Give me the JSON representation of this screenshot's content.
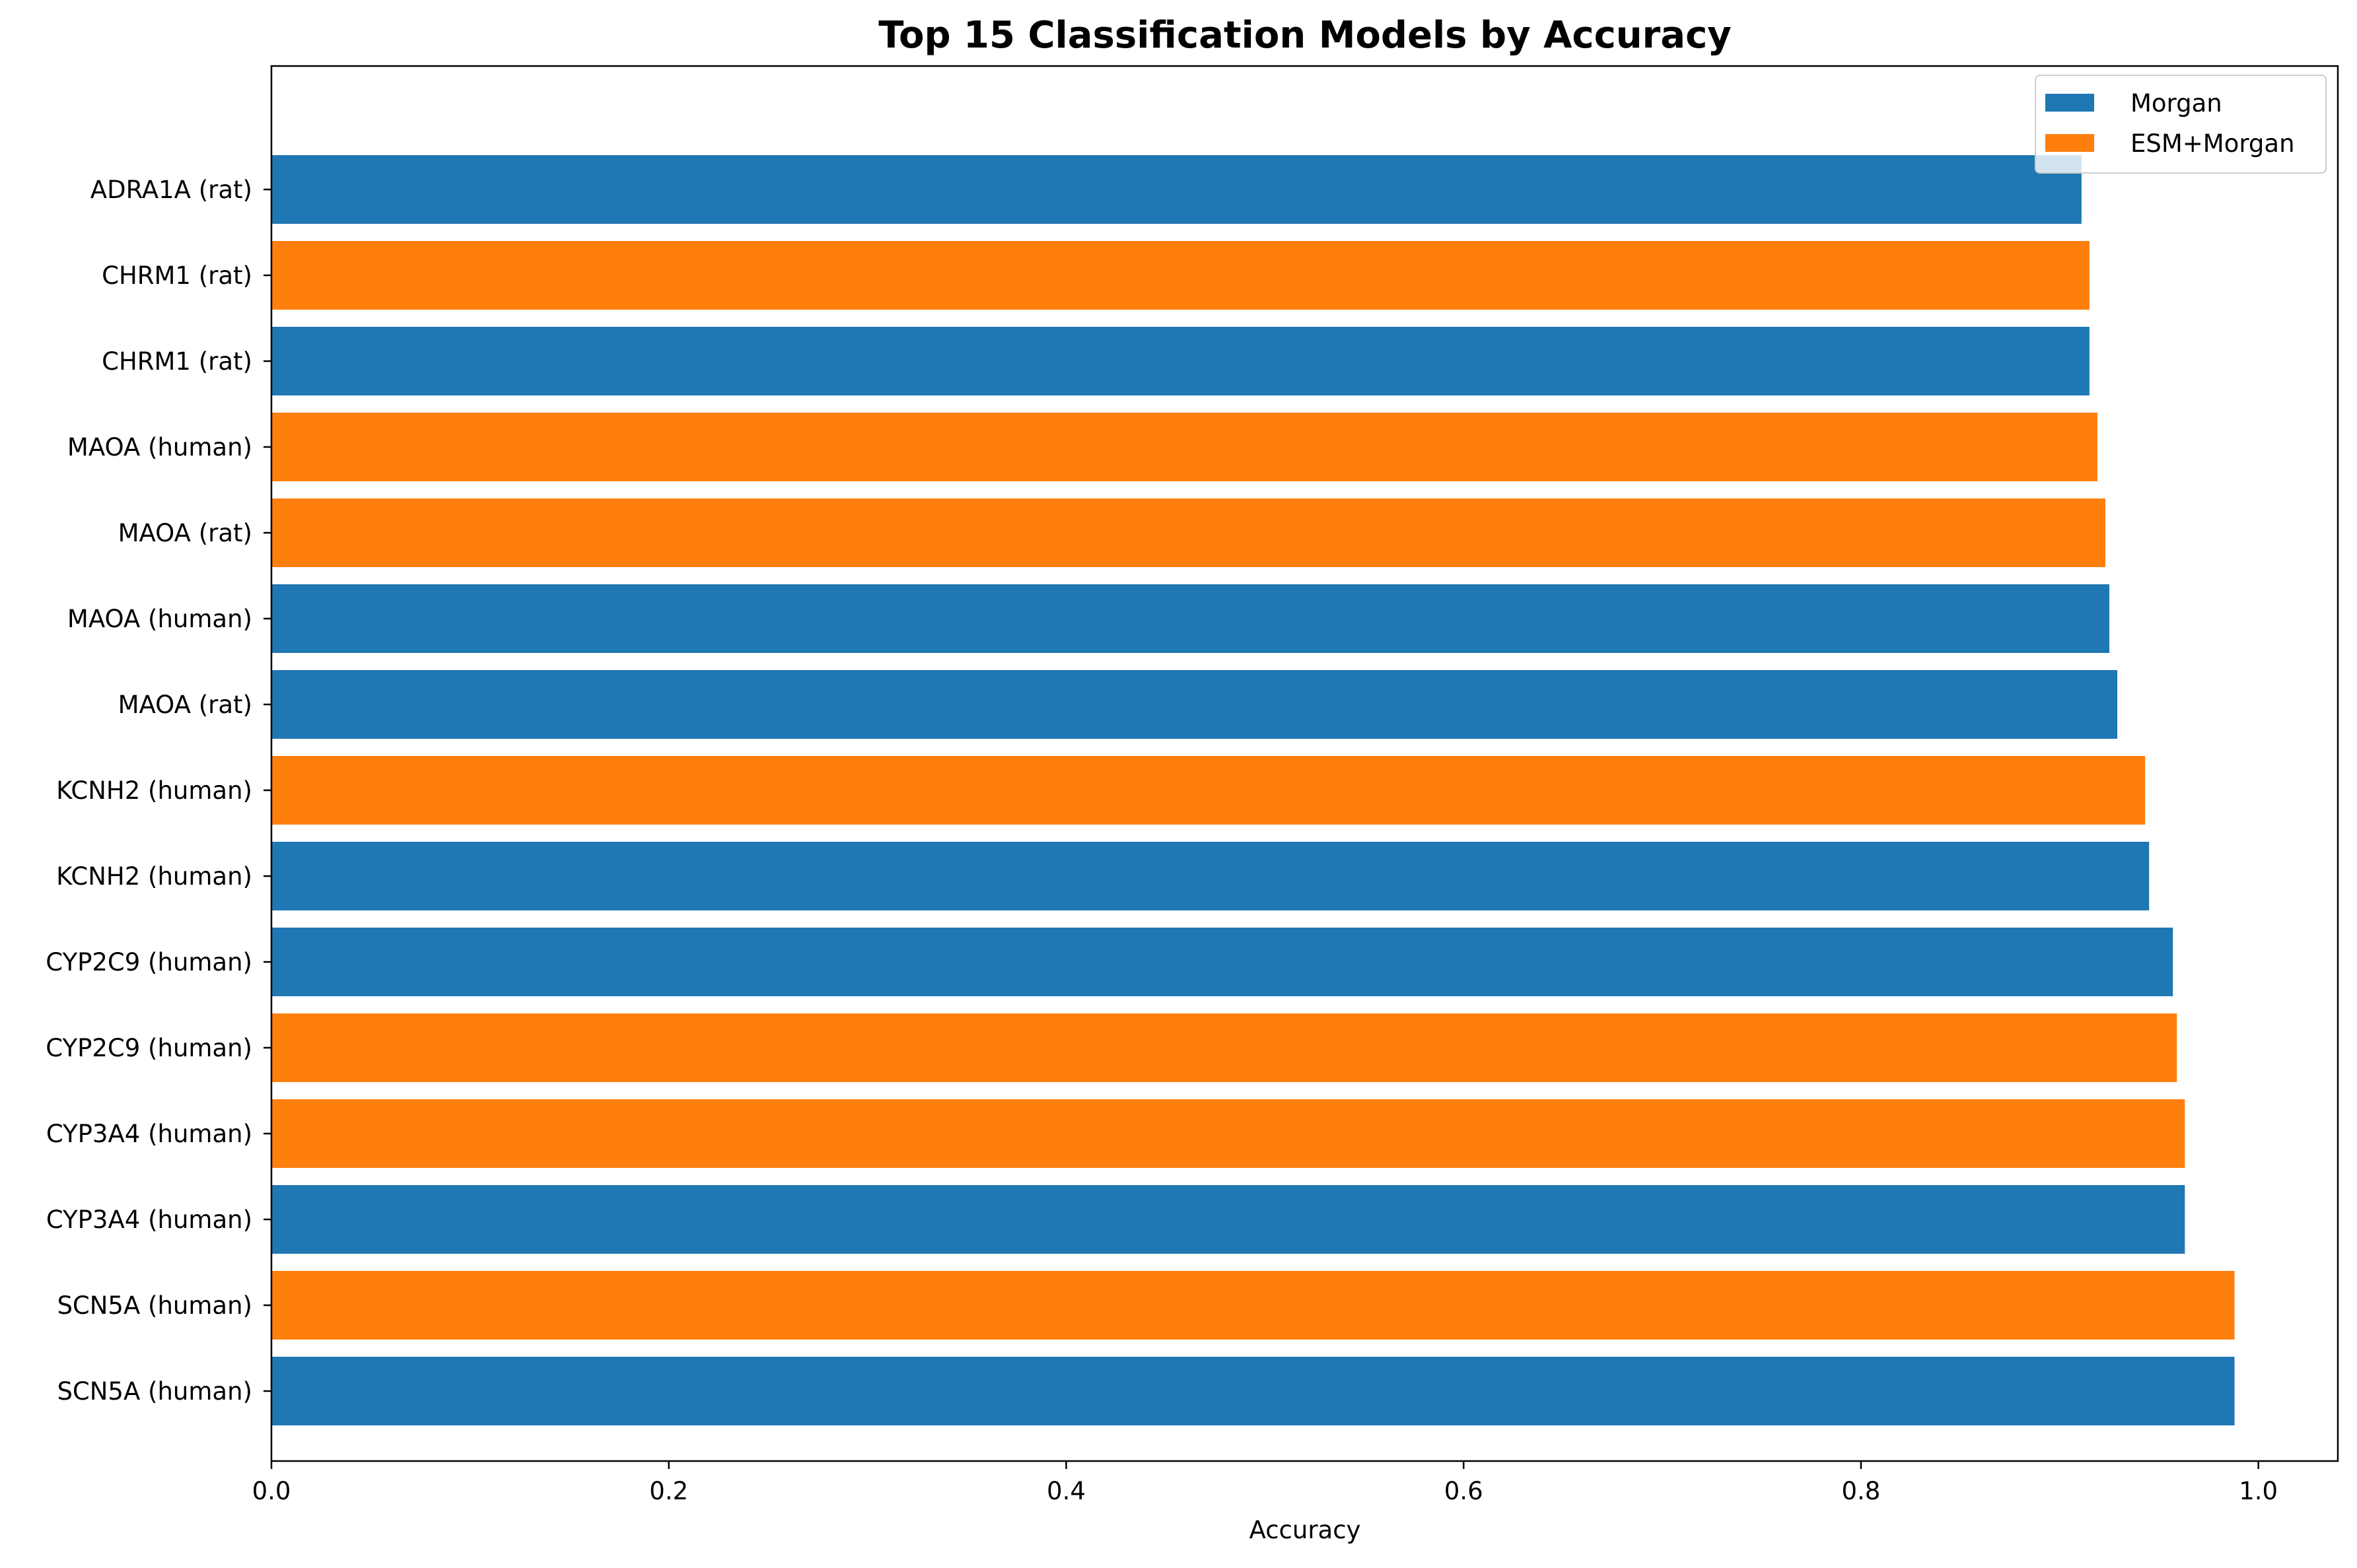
{
  "chart_data": {
    "type": "bar",
    "orientation": "horizontal",
    "title": "Top 15 Classification Models by Accuracy",
    "xlabel": "Accuracy",
    "ylabel": "",
    "xlim": [
      0.0,
      1.04
    ],
    "x_ticks": [
      0.0,
      0.2,
      0.4,
      0.6,
      0.8,
      1.0
    ],
    "x_tick_labels": [
      "0.0",
      "0.2",
      "0.4",
      "0.6",
      "0.8",
      "1.0"
    ],
    "grid": false,
    "legend_position": "top-right",
    "legend": [
      {
        "label": "Morgan",
        "color": "#1f77b4"
      },
      {
        "label": "ESM+Morgan",
        "color": "#ff7f0e"
      }
    ],
    "bars": [
      {
        "label": "SCN5A (human)",
        "series": "Morgan",
        "value": 0.988
      },
      {
        "label": "SCN5A (human)",
        "series": "ESM+Morgan",
        "value": 0.988
      },
      {
        "label": "CYP3A4 (human)",
        "series": "Morgan",
        "value": 0.963
      },
      {
        "label": "CYP3A4 (human)",
        "series": "ESM+Morgan",
        "value": 0.963
      },
      {
        "label": "CYP2C9 (human)",
        "series": "ESM+Morgan",
        "value": 0.959
      },
      {
        "label": "CYP2C9 (human)",
        "series": "Morgan",
        "value": 0.957
      },
      {
        "label": "KCNH2 (human)",
        "series": "Morgan",
        "value": 0.945
      },
      {
        "label": "KCNH2 (human)",
        "series": "ESM+Morgan",
        "value": 0.943
      },
      {
        "label": "MAOA (rat)",
        "series": "Morgan",
        "value": 0.929
      },
      {
        "label": "MAOA (human)",
        "series": "Morgan",
        "value": 0.925
      },
      {
        "label": "MAOA (rat)",
        "series": "ESM+Morgan",
        "value": 0.923
      },
      {
        "label": "MAOA (human)",
        "series": "ESM+Morgan",
        "value": 0.919
      },
      {
        "label": "CHRM1 (rat)",
        "series": "Morgan",
        "value": 0.915
      },
      {
        "label": "CHRM1 (rat)",
        "series": "ESM+Morgan",
        "value": 0.915
      },
      {
        "label": "ADRA1A (rat)",
        "series": "Morgan",
        "value": 0.911
      }
    ]
  }
}
